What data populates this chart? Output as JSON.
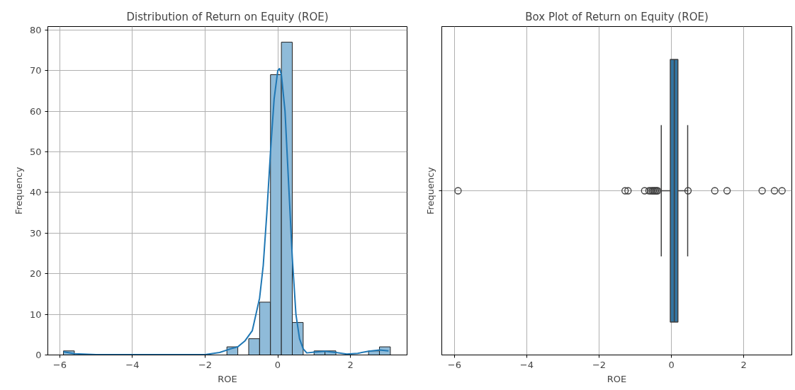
{
  "chart_data": [
    {
      "type": "histogram",
      "title": "Distribution of Return on Equity (ROE)",
      "xlabel": "ROE",
      "ylabel": "Frequency",
      "bins": [
        -5.9,
        -5.6,
        -5.3,
        -5.0,
        -4.7,
        -4.4,
        -4.1,
        -3.8,
        -3.5,
        -3.2,
        -2.9,
        -2.6,
        -2.3,
        -2.0,
        -1.7,
        -1.4,
        -1.1,
        -0.8,
        -0.5,
        -0.2,
        0.1,
        0.4,
        0.7,
        1.0,
        1.3,
        1.6,
        1.9,
        2.2,
        2.5,
        2.8,
        3.1
      ],
      "values": [
        1,
        0,
        0,
        0,
        0,
        0,
        0,
        0,
        0,
        0,
        0,
        0,
        0,
        0,
        0,
        2,
        0,
        4,
        13,
        69,
        77,
        8,
        0,
        1,
        1,
        0,
        0,
        0,
        1,
        2
      ],
      "color": "#8fbbd9",
      "series": [
        {
          "type": "line",
          "color": "#1f77b4",
          "x": [
            -5.9,
            -5.6,
            -5.0,
            -4.0,
            -3.0,
            -2.0,
            -1.6,
            -1.3,
            -1.1,
            -0.9,
            -0.7,
            -0.5,
            -0.4,
            -0.3,
            -0.2,
            -0.1,
            0.0,
            0.05,
            0.1,
            0.2,
            0.3,
            0.4,
            0.5,
            0.6,
            0.7,
            0.8,
            1.0,
            1.3,
            1.6,
            1.9,
            2.2,
            2.5,
            2.8,
            3.05
          ],
          "values": [
            0.8,
            0.3,
            0.1,
            0.1,
            0.1,
            0.1,
            0.6,
            1.5,
            2,
            3.5,
            6,
            14,
            22,
            35,
            50,
            63,
            70,
            70.5,
            69,
            60,
            42,
            24,
            10,
            4,
            1.5,
            0.5,
            0.7,
            0.9,
            0.6,
            0.2,
            0.4,
            0.9,
            1.2,
            1.0
          ]
        }
      ],
      "xlim": [
        -6.33,
        3.56
      ],
      "ylim": [
        0,
        80.85
      ],
      "xticks": [
        {
          "value": -6,
          "label": "−6"
        },
        {
          "value": -4,
          "label": "−4"
        },
        {
          "value": -2,
          "label": "−2"
        },
        0,
        2
      ],
      "yticks": [
        0,
        10,
        20,
        30,
        40,
        50,
        60,
        70,
        80
      ],
      "grid": true
    },
    {
      "type": "box",
      "orientation": "horizontal",
      "title": "Box Plot of Return on Equity (ROE)",
      "xlabel": "ROE",
      "ylabel": "Frequency",
      "categories": [
        null
      ],
      "color": "#3274a1",
      "boxes": [
        {
          "low": -0.28,
          "q1": -0.03,
          "median": 0.08,
          "q3": 0.18,
          "high": 0.45,
          "outliers": [
            -5.9,
            -1.28,
            -1.2,
            -0.74,
            -0.62,
            -0.57,
            -0.53,
            -0.5,
            -0.47,
            -0.44,
            -0.41,
            -0.38,
            0.46,
            1.2,
            1.54,
            2.51,
            2.85,
            3.06
          ]
        }
      ],
      "xlim": [
        -6.35,
        3.33
      ],
      "xticks": [
        {
          "value": -6,
          "label": "−6"
        },
        {
          "value": -4,
          "label": "−4"
        },
        {
          "value": -2,
          "label": "−2"
        },
        0,
        2
      ],
      "grid": true
    }
  ]
}
